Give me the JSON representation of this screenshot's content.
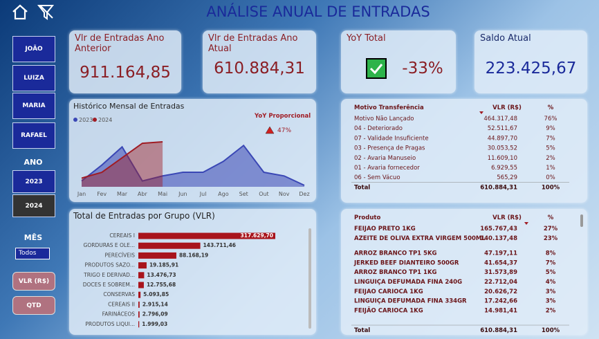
{
  "header": {
    "title": "ANÁLISE ANUAL DE ENTRADAS"
  },
  "sidebar": {
    "people": [
      "JOÃO",
      "LUIZA",
      "MARIA",
      "RAFAEL"
    ],
    "year_label": "ANO",
    "years": [
      "2023",
      "2024"
    ],
    "month_label": "MÊS",
    "month_value": "Todos",
    "measures": [
      "VLR (R$)",
      "QTD"
    ]
  },
  "cards": [
    {
      "label": "Vlr de Entradas Ano Anterior",
      "value": "911.164,85"
    },
    {
      "label": "Vlr de Entradas Ano Atual",
      "value": "610.884,31"
    },
    {
      "label": "YoY Total",
      "value": "-33%"
    },
    {
      "label": "Saldo Atual",
      "value": "223.425,67"
    }
  ],
  "chart_data": [
    {
      "type": "line",
      "title": "Histórico Mensal de Entradas",
      "categories": [
        "Jan",
        "Fev",
        "Mar",
        "Abr",
        "Mai",
        "Jun",
        "Jul",
        "Ago",
        "Set",
        "Out",
        "Nov",
        "Dez"
      ],
      "series": [
        {
          "name": "2023",
          "color": "#3a47b5",
          "values": [
            8,
            30,
            55,
            8,
            15,
            20,
            20,
            35,
            57,
            20,
            15,
            2
          ]
        },
        {
          "name": "2024",
          "color": "#a01c24",
          "values": [
            12,
            20,
            40,
            60,
            62,
            null,
            null,
            null,
            null,
            null,
            null,
            null
          ]
        }
      ],
      "annotation": {
        "title": "YoY Proporcional",
        "value": "47%"
      }
    },
    {
      "type": "bar",
      "orientation": "horizontal",
      "title": "Total de Entradas por Grupo (VLR)",
      "color": "#a8141c",
      "categories": [
        "CEREAIS I",
        "GORDURAS E OLE...",
        "PERECÍVEIS",
        "PRODUTOS SAZO...",
        "TRIGO E DERIVAD...",
        "DOCES E SOBREM...",
        "CONSERVAS",
        "CEREAIS II",
        "FARINÁCEOS",
        "PRODUTOS LIQUI..."
      ],
      "values": [
        317629.7,
        143711.46,
        88168.19,
        19185.91,
        13476.73,
        12755.68,
        5093.85,
        2915.14,
        2796.09,
        1999.03
      ],
      "value_labels": [
        "317.629,70",
        "143.711,46",
        "88.168,19",
        "19.185,91",
        "13.476,73",
        "12.755,68",
        "5.093,85",
        "2.915,14",
        "2.796,09",
        "1.999,03"
      ]
    }
  ],
  "tables": [
    {
      "headers": [
        "Motivo Transferência",
        "VLR (R$)",
        "%"
      ],
      "rows": [
        [
          "Motivo Não Lançado",
          "464.317,48",
          "76%"
        ],
        [
          "04 - Deteriorado",
          "52.511,67",
          "9%"
        ],
        [
          "07 - Validade Insuficiente",
          "44.897,70",
          "7%"
        ],
        [
          "03 - Presença de Pragas",
          "30.053,52",
          "5%"
        ],
        [
          "02 - Avaria Manuseio",
          "11.609,10",
          "2%"
        ],
        [
          "01 - Avaria fornecedor",
          "6.929,55",
          "1%"
        ],
        [
          "06 - Sem Vácuo",
          "565,29",
          "0%"
        ]
      ],
      "total": [
        "Total",
        "610.884,31",
        "100%"
      ]
    },
    {
      "headers": [
        "Produto",
        "VLR (R$)",
        "%"
      ],
      "rows": [
        [
          "FEIJAO PRETO 1KG",
          "165.767,43",
          "27%"
        ],
        [
          "AZEITE DE OLIVA EXTRA VIRGEM 500ML",
          "140.137,48",
          "23%"
        ],
        [
          "ARROZ BRANCO TP1 5KG",
          "47.197,11",
          "8%"
        ],
        [
          "JERKED BEEF DIANTEIRO 500GR",
          "41.654,37",
          "7%"
        ],
        [
          "ARROZ BRANCO TP1 1KG",
          "31.573,89",
          "5%"
        ],
        [
          "LINGUIÇA DEFUMADA FINA 240G",
          "22.712,04",
          "4%"
        ],
        [
          "FEIJAO CARIOCA 1KG",
          "20.626,72",
          "3%"
        ],
        [
          "LINGUIÇA DEFUMADA FINA 334GR",
          "17.242,66",
          "3%"
        ],
        [
          "FEIJÃO CARIOCA 1KG",
          "14.981,41",
          "2%"
        ]
      ],
      "total": [
        "Total",
        "610.884,31",
        "100%"
      ]
    }
  ]
}
